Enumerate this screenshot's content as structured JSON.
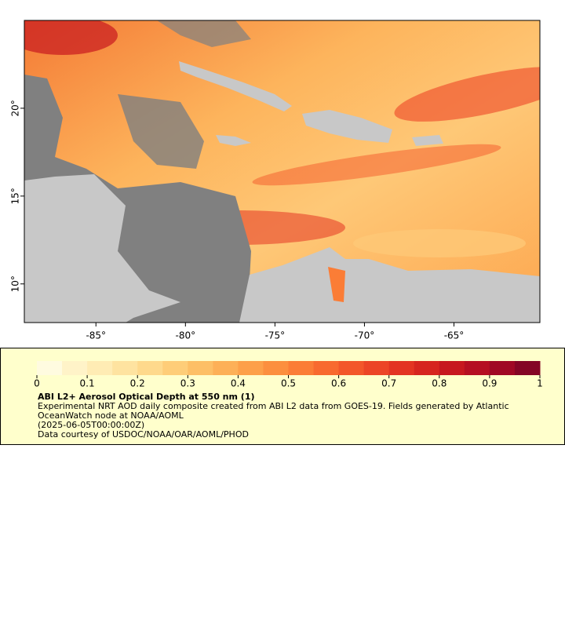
{
  "chart_data": {
    "type": "map",
    "xlim": [
      -89,
      -60.2
    ],
    "ylim": [
      7.8,
      25
    ],
    "xticks": [
      {
        "value": -85,
        "label": "-85°"
      },
      {
        "value": -80,
        "label": "-80°"
      },
      {
        "value": -75,
        "label": "-75°"
      },
      {
        "value": -70,
        "label": "-70°"
      },
      {
        "value": -65,
        "label": "-65°"
      }
    ],
    "yticks": [
      {
        "value": 10,
        "label": "10°"
      },
      {
        "value": 15,
        "label": "15°"
      },
      {
        "value": 20,
        "label": "20°"
      }
    ],
    "colorbar": {
      "lim": [
        0,
        1
      ],
      "ticks": [
        0,
        0.1,
        0.2,
        0.3,
        0.4,
        0.5,
        0.6,
        0.7,
        0.8,
        0.9,
        1
      ],
      "colors": [
        "#fffbe0",
        "#fff3c8",
        "#ffecb4",
        "#fee3a0",
        "#fed98c",
        "#fecd78",
        "#fdbf66",
        "#fdb057",
        "#fda049",
        "#fc8f3e",
        "#fb7d36",
        "#f86a2f",
        "#f3572a",
        "#ec4526",
        "#e33422",
        "#d6251f",
        "#c7181f",
        "#b50f22",
        "#a00824",
        "#840525"
      ]
    },
    "title": "ABI L2+ Aerosol Optical Depth at 550 nm (1)",
    "description": "Experimental NRT AOD daily composite created from ABI L2 data from GOES-19. Fields generated by Atlantic OceanWatch node at NOAA/AOML",
    "time": "(2025-06-05T00:00:00Z)",
    "credit": "Data courtesy of USDOC/NOAA/OAR/AOML/PHOD"
  }
}
